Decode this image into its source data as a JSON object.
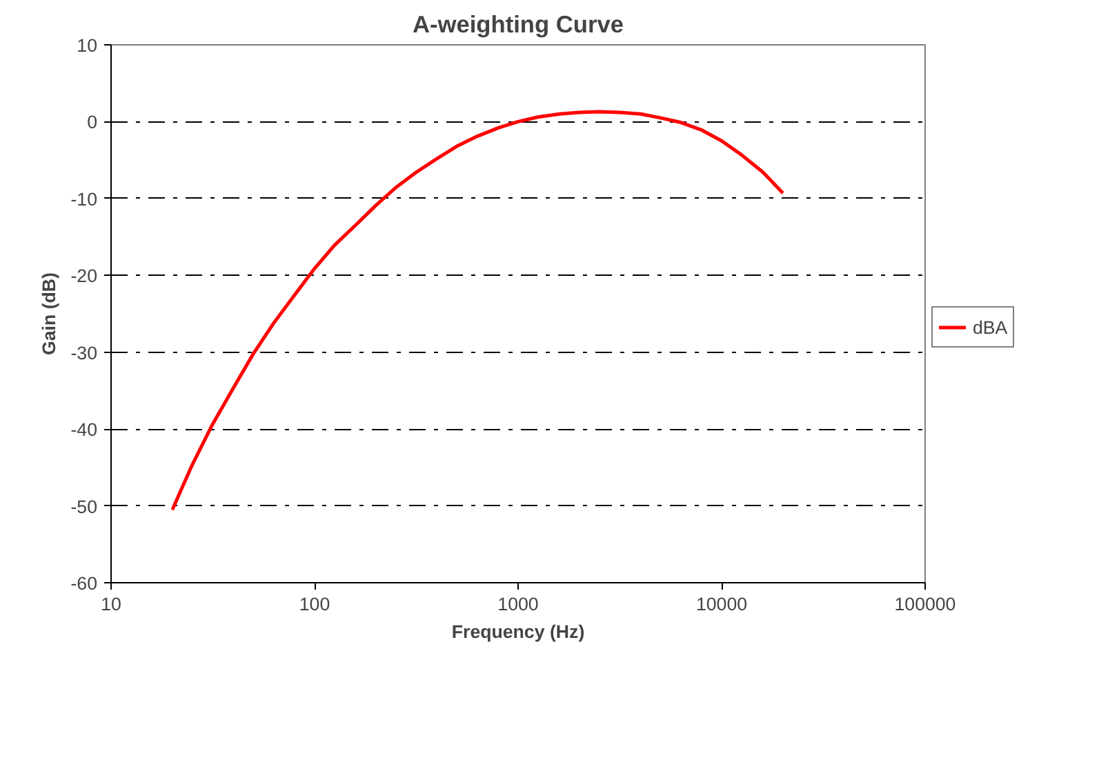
{
  "chart_data": {
    "type": "line",
    "title": "A-weighting Curve",
    "xlabel": "Frequency (Hz)",
    "ylabel": "Gain (dB)",
    "log": "x",
    "xlim": [
      10,
      100000
    ],
    "xticks": [
      10,
      100,
      1000,
      10000,
      100000
    ],
    "ylim": [
      -60,
      10
    ],
    "yticks": [
      -60,
      -50,
      -40,
      -30,
      -20,
      -10,
      0,
      10
    ],
    "grid": "y",
    "legend": "right",
    "marker": "none",
    "line_style": "solid",
    "series": [
      {
        "name": "dBA",
        "color": "#ff0000",
        "x": [
          20,
          25,
          31.5,
          40,
          50,
          63,
          80,
          100,
          125,
          160,
          200,
          250,
          315,
          400,
          500,
          630,
          800,
          1000,
          1250,
          1600,
          2000,
          2500,
          3150,
          4000,
          5000,
          6300,
          8000,
          10000,
          12500,
          16000,
          20000
        ],
        "values": [
          -50.5,
          -44.7,
          -39.4,
          -34.6,
          -30.2,
          -26.2,
          -22.5,
          -19.1,
          -16.1,
          -13.4,
          -10.9,
          -8.6,
          -6.6,
          -4.8,
          -3.2,
          -1.9,
          -0.8,
          0,
          0.6,
          1.0,
          1.2,
          1.3,
          1.2,
          1.0,
          0.5,
          -0.1,
          -1.1,
          -2.5,
          -4.3,
          -6.6,
          -9.3
        ]
      }
    ]
  }
}
